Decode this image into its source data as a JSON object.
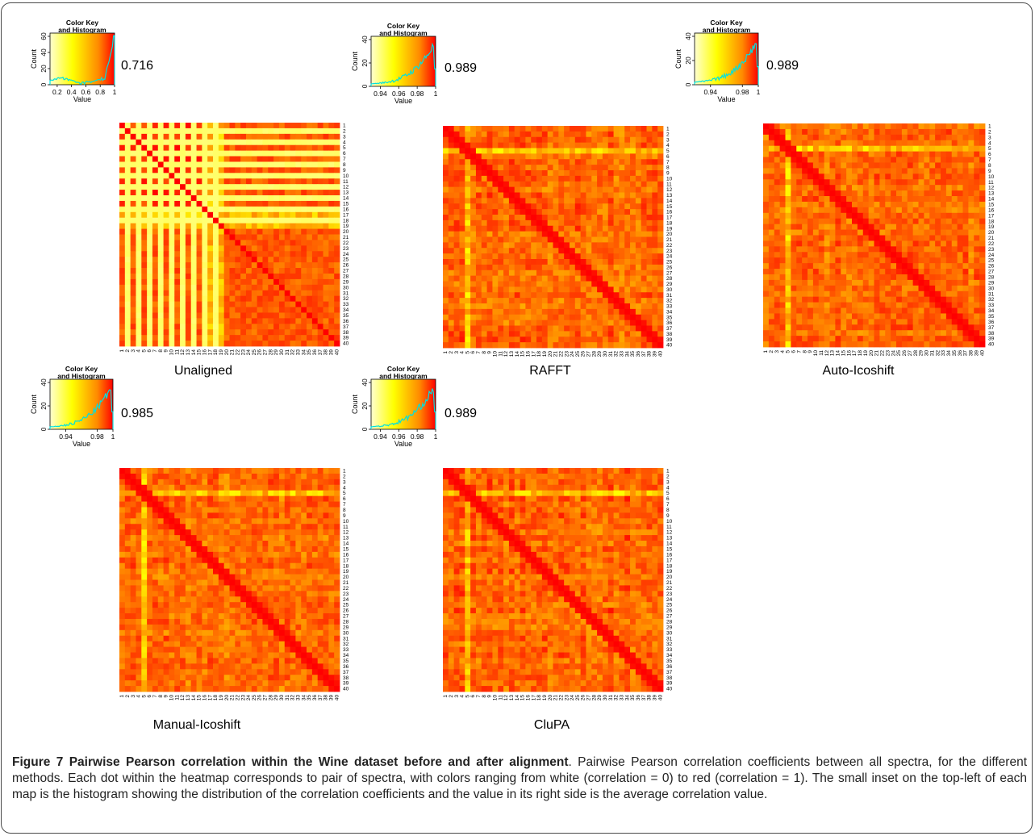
{
  "panels": [
    {
      "name": "Unaligned",
      "mean_label": "0.716",
      "key": {
        "title": [
          "Color Key",
          "and Histogram"
        ],
        "xlabel": "Value",
        "ylabel": "Count",
        "xmin": 0.1,
        "xmax": 1.0,
        "xticks": [
          {
            "v": 0.2,
            "t": "0.2"
          },
          {
            "v": 0.4,
            "t": "0.4"
          },
          {
            "v": 0.6,
            "t": "0.6"
          },
          {
            "v": 0.8,
            "t": "0.8"
          },
          {
            "v": 1.0,
            "t": "1"
          }
        ],
        "yticks": [
          0,
          20,
          40,
          60
        ],
        "ymax": 60
      }
    },
    {
      "name": "RAFFT",
      "mean_label": "0.989",
      "key": {
        "title": [
          "Color Key",
          "and Histogram"
        ],
        "xlabel": "Value",
        "ylabel": "Count",
        "xmin": 0.93,
        "xmax": 1.0,
        "xticks": [
          {
            "v": 0.94,
            "t": "0.94"
          },
          {
            "v": 0.96,
            "t": "0.96"
          },
          {
            "v": 0.98,
            "t": "0.98"
          },
          {
            "v": 1.0,
            "t": "1"
          }
        ],
        "yticks": [
          0,
          20,
          40
        ],
        "ymax": 40
      }
    },
    {
      "name": "Auto-Icoshift",
      "mean_label": "0.989",
      "key": {
        "title": [
          "Color Key",
          "and Histogram"
        ],
        "xlabel": "Value",
        "ylabel": "Count",
        "xmin": 0.92,
        "xmax": 1.0,
        "xticks": [
          {
            "v": 0.94,
            "t": "0.94"
          },
          {
            "v": 0.98,
            "t": "0.98"
          },
          {
            "v": 1.0,
            "t": "1"
          }
        ],
        "yticks": [
          0,
          20,
          40
        ],
        "ymax": 40
      }
    },
    {
      "name": "Manual-Icoshift",
      "mean_label": "0.985",
      "key": {
        "title": [
          "Color Key",
          "and Histogram"
        ],
        "xlabel": "Value",
        "ylabel": "Count",
        "xmin": 0.92,
        "xmax": 1.0,
        "xticks": [
          {
            "v": 0.94,
            "t": "0.94"
          },
          {
            "v": 0.98,
            "t": "0.98"
          },
          {
            "v": 1.0,
            "t": "1"
          }
        ],
        "yticks": [
          0,
          20,
          40
        ],
        "ymax": 40
      }
    },
    {
      "name": "CluPA",
      "mean_label": "0.989",
      "key": {
        "title": [
          "Color Key",
          "and Histogram"
        ],
        "xlabel": "Value",
        "ylabel": "Count",
        "xmin": 0.93,
        "xmax": 1.0,
        "xticks": [
          {
            "v": 0.94,
            "t": "0.94"
          },
          {
            "v": 0.96,
            "t": "0.96"
          },
          {
            "v": 0.98,
            "t": "0.98"
          },
          {
            "v": 1.0,
            "t": "1"
          }
        ],
        "yticks": [
          0,
          20,
          40
        ],
        "ymax": 40
      }
    }
  ],
  "matrix_labels": [
    "1",
    "2",
    "3",
    "4",
    "5",
    "6",
    "7",
    "8",
    "9",
    "10",
    "11",
    "12",
    "13",
    "14",
    "15",
    "16",
    "17",
    "18",
    "19",
    "20",
    "21",
    "22",
    "23",
    "24",
    "25",
    "26",
    "27",
    "28",
    "29",
    "30",
    "31",
    "32",
    "33",
    "34",
    "35",
    "36",
    "37",
    "38",
    "39",
    "40"
  ],
  "colors": {
    "low": "#ffffff",
    "mid": "#ffff00",
    "high": "#ff0000",
    "histogram": "#00e0e0"
  },
  "caption": {
    "bold": "Figure 7 Pairwise Pearson correlation within the Wine dataset before and after alignment",
    "text": ". Pairwise Pearson correlation coefficients between all spectra, for the different methods. Each dot within the heatmap corresponds to pair of spectra, with colors ranging from white (correlation = 0) to red (correlation = 1). The small inset on the top-left of each map is the histogram showing the distribution of the correlation coefficients and the value in its right side is the average correlation value."
  },
  "chart_data": [
    {
      "type": "heatmap",
      "title": "Unaligned",
      "n": 40,
      "mean": 0.716,
      "value_range": [
        0.1,
        1.0
      ],
      "note_hist_peak": "counts peak near 1 (~60)"
    },
    {
      "type": "heatmap",
      "title": "RAFFT",
      "n": 40,
      "mean": 0.989,
      "value_range": [
        0.93,
        1.0
      ]
    },
    {
      "type": "heatmap",
      "title": "Auto-Icoshift",
      "n": 40,
      "mean": 0.989,
      "value_range": [
        0.92,
        1.0
      ]
    },
    {
      "type": "heatmap",
      "title": "Manual-Icoshift",
      "n": 40,
      "mean": 0.985,
      "value_range": [
        0.92,
        1.0
      ]
    },
    {
      "type": "heatmap",
      "title": "CluPA",
      "n": 40,
      "mean": 0.989,
      "value_range": [
        0.93,
        1.0
      ]
    }
  ]
}
